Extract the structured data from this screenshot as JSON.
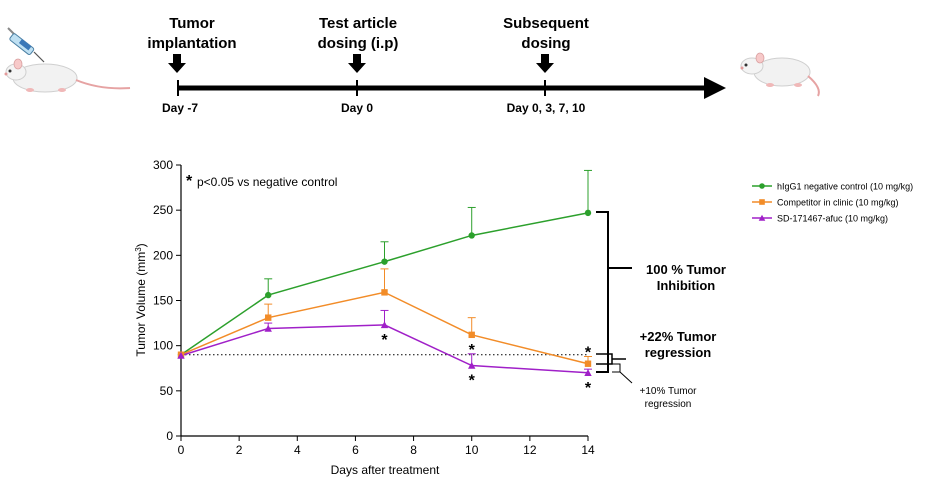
{
  "timeline": {
    "steps": [
      {
        "label_lines": [
          "Tumor",
          "implantation"
        ],
        "day": "Day -7"
      },
      {
        "label_lines": [
          "Test article",
          "dosing (i.p)"
        ],
        "day": "Day 0"
      },
      {
        "label_lines": [
          "Subsequent",
          "dosing"
        ],
        "day": "Day 0, 3, 7, 10"
      }
    ]
  },
  "annotations": {
    "pvalue_star": "*",
    "pvalue_text": "p<0.05 vs negative control",
    "inhibition": [
      "100 % Tumor",
      "Inhibition"
    ],
    "regression_competitor": [
      "+22% Tumor",
      "regression"
    ],
    "regression_sd": [
      "+10% Tumor",
      "regression"
    ],
    "sig_marker": "*"
  },
  "chart_data": {
    "type": "line",
    "title": "",
    "xlabel": "Days after treatment",
    "ylabel_main": "Tumor Volume (mm",
    "ylabel_sup": "3",
    "ylabel_close": ")",
    "xlim": [
      0,
      14
    ],
    "ylim": [
      0,
      300
    ],
    "x_ticks": [
      0,
      2,
      4,
      6,
      8,
      10,
      12,
      14
    ],
    "y_ticks": [
      0,
      50,
      100,
      150,
      200,
      250,
      300
    ],
    "x": [
      0,
      3,
      7,
      10,
      14
    ],
    "baseline_value": 90,
    "legend_position": "top-right",
    "series": [
      {
        "name": "hIgG1 negative control (10 mg/kg)",
        "color": "#2ca02c",
        "marker": "circle",
        "values": [
          90,
          156,
          193,
          222,
          247
        ],
        "errors": [
          0,
          18,
          22,
          31,
          47
        ]
      },
      {
        "name": "Competitor in clinic  (10 mg/kg)",
        "color": "#f28c28",
        "marker": "square",
        "values": [
          90,
          131,
          159,
          112,
          80
        ],
        "errors": [
          0,
          15,
          26,
          19,
          8
        ]
      },
      {
        "name": "SD-171467-afuc (10 mg/kg)",
        "color": "#a020c8",
        "marker": "triangle",
        "values": [
          89,
          119,
          123,
          78,
          70
        ],
        "errors": [
          0,
          6,
          16,
          13,
          4
        ]
      }
    ],
    "significance": [
      {
        "x": 7,
        "value": 123
      },
      {
        "x": 10,
        "value": 78
      },
      {
        "x": 10,
        "value": 112
      },
      {
        "x": 14,
        "value": 80
      },
      {
        "x": 14,
        "value": 70
      }
    ]
  }
}
